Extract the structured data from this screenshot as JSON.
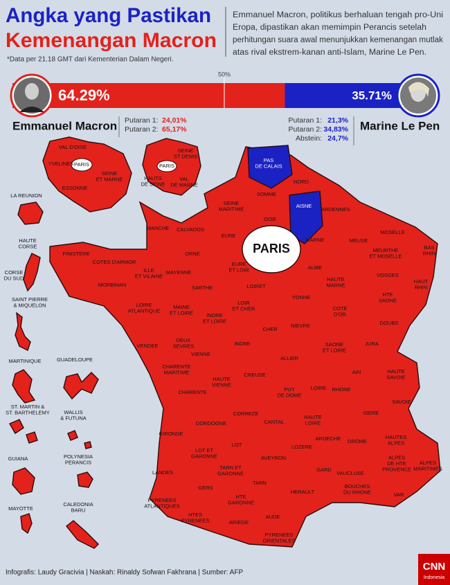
{
  "header": {
    "title_lines": [
      "Angka yang Pastikan",
      "Kemenangan Macron"
    ],
    "note": "*Data per 21.18 GMT dari Kementerian Dalam Negeri.",
    "description_lines": [
      "Emmanuel Macron, politikus berhaluan tengah pro-Uni",
      "Eropa, dipastikan akan memimpin Perancis setelah",
      "perhitungan suara awal menunjukkan kemenangan mutlak",
      "atas rival ekstrem-kanan anti-Islam, Marine Le Pen."
    ]
  },
  "results": {
    "midpoint": {
      "value": 50,
      "label": "50%"
    },
    "candidates": [
      {
        "name": "Emmanuel Macron",
        "share": 64.29,
        "share_label": "64.29%",
        "color": "#e3221c",
        "rounds": [
          {
            "label": "Putaran 1:",
            "value": "24,01%"
          },
          {
            "label": "Putaran 2:",
            "value": "65,17%"
          }
        ]
      },
      {
        "name": "Marine Le Pen",
        "share": 35.71,
        "share_label": "35.71%",
        "color": "#1b22c4",
        "rounds": [
          {
            "label": "Putaran 1:",
            "value": "21,3%"
          },
          {
            "label": "Putaran 2:",
            "value": "34,83%"
          },
          {
            "label": "Abstein:",
            "value": "24,7%"
          }
        ]
      }
    ]
  },
  "map": {
    "paris_label": "PARIS",
    "idf": [
      [
        "VAL D'OISE"
      ],
      [
        "YVELINES"
      ],
      [
        "PARIS"
      ],
      [
        "SEINE",
        "ET MARNE"
      ],
      [
        "ESSONNE"
      ]
    ],
    "petite": [
      [
        "SEINE",
        "ST DENIS"
      ],
      [
        "PARIS"
      ],
      [
        "HAUTS",
        "DE SEINE"
      ],
      [
        "VAL",
        "DE MARNE"
      ]
    ],
    "mainland": [
      [
        "PAS",
        "DE CALAIS"
      ],
      [
        "NORD"
      ],
      [
        "SOMME"
      ],
      [
        "AISNE"
      ],
      [
        "SEINE",
        "MARITIME"
      ],
      [
        "OISE"
      ],
      [
        "ARDENNES"
      ],
      [
        "MANCHE"
      ],
      [
        "CALVADOS"
      ],
      [
        "EURE"
      ],
      [
        "MARNE"
      ],
      [
        "MEUSE"
      ],
      [
        "MOSELLE"
      ],
      [
        "BAS",
        "RHIN"
      ],
      [
        "MEURTHE",
        "ET MOSELLE"
      ],
      [
        "FINISTERE"
      ],
      [
        "COTES D'ARMOR"
      ],
      [
        "ORNE"
      ],
      [
        "EURE",
        "ET LOIR"
      ],
      [
        "AUBE"
      ],
      [
        "ILLE",
        "ET VILAINE"
      ],
      [
        "MORBIHAN"
      ],
      [
        "MAYENNE"
      ],
      [
        "SARTHE"
      ],
      [
        "LOIRET"
      ],
      [
        "HAUTE",
        "MARNE"
      ],
      [
        "VOSGES"
      ],
      [
        "HAUT",
        "RHIN"
      ],
      [
        "YONNE"
      ],
      [
        "HTE",
        "SAONE"
      ],
      [
        "LOIRE",
        "ATLANTIQUE"
      ],
      [
        "MAINE",
        "ET LOIRE"
      ],
      [
        "LOIR",
        "ET CHER"
      ],
      [
        "COTE",
        "D'OR"
      ],
      [
        "INDRE",
        "ET LOIRE"
      ],
      [
        "CHER"
      ],
      [
        "NIEVRE"
      ],
      [
        "DOUBS"
      ],
      [
        "VENDEE"
      ],
      [
        "DEUX",
        "SEVRES"
      ],
      [
        "VIENNE"
      ],
      [
        "INDRE"
      ],
      [
        "SAONE",
        "ET LOIRE"
      ],
      [
        "JURA"
      ],
      [
        "ALLIER"
      ],
      [
        "AIN"
      ],
      [
        "HAUTE",
        "SAVOIE"
      ],
      [
        "CHARENTE",
        "MARITIME"
      ],
      [
        "CREUSE"
      ],
      [
        "HAUTE",
        "VIENNE"
      ],
      [
        "PUY",
        "DE DOME"
      ],
      [
        "LOIRE"
      ],
      [
        "RHONE"
      ],
      [
        "CHARENTE"
      ],
      [
        "SAVOIE"
      ],
      [
        "CORREZE"
      ],
      [
        "DORDOGNE"
      ],
      [
        "CANTAL"
      ],
      [
        "HAUTE",
        "LOIRE"
      ],
      [
        "ISERE"
      ],
      [
        "GIRONDE"
      ],
      [
        "LOT"
      ],
      [
        "ARDECHE"
      ],
      [
        "DROME"
      ],
      [
        "HAUTES",
        "ALPES"
      ],
      [
        "LOT ET",
        "GARONNE"
      ],
      [
        "LOZERE"
      ],
      [
        "AVEYRON"
      ],
      [
        "ALPES",
        "DE HTE",
        "PROVENCE"
      ],
      [
        "ALPES",
        "MARITIMES"
      ],
      [
        "LANDES"
      ],
      [
        "TARN ET",
        "GARONNE"
      ],
      [
        "GARD"
      ],
      [
        "VAUCLUSE"
      ],
      [
        "GERS"
      ],
      [
        "TARN"
      ],
      [
        "BOUCHES",
        "DU RHONE"
      ],
      [
        "HERAULT"
      ],
      [
        "VAR"
      ],
      [
        "PYRENEES",
        "ATLANTIQUES"
      ],
      [
        "HTE",
        "GARONNE"
      ],
      [
        "HTES",
        "PYRENEES"
      ],
      [
        "ARIEGE"
      ],
      [
        "AUDE"
      ],
      [
        "PYRENEES",
        "ORIENTALES"
      ]
    ],
    "territories": [
      [
        "LA REUNION"
      ],
      [
        "HAUTE",
        "CORSE"
      ],
      [
        "CORSE",
        "DU SUD"
      ],
      [
        "SAINT PIERRE",
        "& MIQUELON"
      ],
      [
        "MARTINIQUE"
      ],
      [
        "GUADELOUPE"
      ],
      [
        "ST. MARTIN &",
        "ST. BARTHELEMY"
      ],
      [
        "WALLIS",
        "& FUTUNA"
      ],
      [
        "GUIANA"
      ],
      [
        "POLYNESIA",
        "PERANCIS"
      ],
      [
        "MAYOTTE"
      ],
      [
        "CALEDONIA",
        "BARU"
      ]
    ]
  },
  "footer": {
    "credits": "Infografis: Laudy Gracivia | Naskah: Rinaldy Sofwan Fakhrana | Sumber: AFP",
    "logo": "CNN",
    "logo_sub": "Indonesia"
  }
}
